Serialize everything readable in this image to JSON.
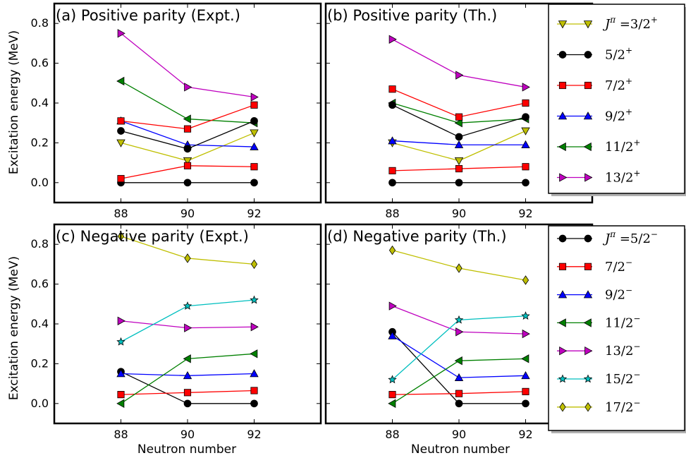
{
  "figure": {
    "ylabel": "Excitation energy (MeV)",
    "xlabel": "Neutron number"
  },
  "chart_data": [
    {
      "type": "line",
      "title": "(a) Positive parity (Expt.)",
      "xlabel": "",
      "ylabel": "Excitation energy (MeV)",
      "x": [
        88,
        90,
        92
      ],
      "xlim": [
        86,
        94
      ],
      "ylim": [
        -0.1,
        0.9
      ],
      "xticks": [
        "88",
        "90",
        "92"
      ],
      "yticks": [
        "0.0",
        "0.2",
        "0.4",
        "0.6",
        "0.8"
      ],
      "series": [
        {
          "name": "J^π = 3/2^+",
          "marker": "tri-down",
          "color": "#bfbf00",
          "values": [
            0.2,
            0.11,
            0.25
          ]
        },
        {
          "name": "5/2^+",
          "marker": "circle",
          "color": "#000000",
          "values": [
            0.0,
            0.0,
            0.0
          ]
        },
        {
          "name": "7/2^+",
          "marker": "square",
          "color": "#ff0000",
          "values": [
            0.02,
            0.085,
            0.08
          ]
        },
        {
          "name": "9/2^+",
          "marker": "tri-up",
          "color": "#0000ff",
          "values": [
            0.31,
            0.19,
            0.18
          ]
        },
        {
          "name": "11/2^+",
          "marker": "tri-left",
          "color": "#008000",
          "values": [
            0.51,
            0.32,
            0.3
          ]
        },
        {
          "name": "13/2^+",
          "marker": "tri-right",
          "color": "#bf00bf",
          "values": [
            0.75,
            0.48,
            0.43
          ]
        },
        {
          "name": "5/2^+ (band)",
          "marker": "circle",
          "color": "#000000",
          "values": [
            0.26,
            0.17,
            0.31
          ],
          "hidden_name": true
        },
        {
          "name": "7/2^+ (band)",
          "marker": "square",
          "color": "#ff0000",
          "values": [
            0.31,
            0.27,
            0.39
          ],
          "hidden_name": true
        }
      ]
    },
    {
      "type": "line",
      "title": "(b) Positive parity (Th.)",
      "xlabel": "",
      "ylabel": "",
      "x": [
        88,
        90,
        92
      ],
      "xlim": [
        86,
        94
      ],
      "ylim": [
        -0.1,
        0.9
      ],
      "xticks": [
        "88",
        "90",
        "92"
      ],
      "yticks": [],
      "series": [
        {
          "name": "J^π = 3/2^+",
          "marker": "tri-down",
          "color": "#bfbf00",
          "values": [
            0.2,
            0.11,
            0.26
          ]
        },
        {
          "name": "5/2^+",
          "marker": "circle",
          "color": "#000000",
          "values": [
            0.0,
            0.0,
            0.0
          ]
        },
        {
          "name": "7/2^+",
          "marker": "square",
          "color": "#ff0000",
          "values": [
            0.06,
            0.07,
            0.08
          ]
        },
        {
          "name": "9/2^+",
          "marker": "tri-up",
          "color": "#0000ff",
          "values": [
            0.21,
            0.19,
            0.19
          ]
        },
        {
          "name": "11/2^+",
          "marker": "tri-left",
          "color": "#008000",
          "values": [
            0.4,
            0.3,
            0.32
          ]
        },
        {
          "name": "13/2^+",
          "marker": "tri-right",
          "color": "#bf00bf",
          "values": [
            0.72,
            0.54,
            0.48
          ]
        },
        {
          "name": "5/2^+ (band)",
          "marker": "circle",
          "color": "#000000",
          "values": [
            0.39,
            0.23,
            0.33
          ],
          "hidden_name": true
        },
        {
          "name": "7/2^+ (band)",
          "marker": "square",
          "color": "#ff0000",
          "values": [
            0.47,
            0.33,
            0.4
          ],
          "hidden_name": true
        }
      ]
    },
    {
      "type": "line",
      "title": "(c) Negative parity (Expt.)",
      "xlabel": "Neutron number",
      "ylabel": "Excitation energy (MeV)",
      "x": [
        88,
        90,
        92
      ],
      "xlim": [
        86,
        94
      ],
      "ylim": [
        -0.1,
        0.9
      ],
      "xticks": [
        "88",
        "90",
        "92"
      ],
      "yticks": [
        "0.0",
        "0.2",
        "0.4",
        "0.6",
        "0.8"
      ],
      "series": [
        {
          "name": "J^π = 5/2^-",
          "marker": "circle",
          "color": "#000000",
          "values": [
            0.16,
            0.0,
            0.0
          ]
        },
        {
          "name": "7/2^-",
          "marker": "square",
          "color": "#ff0000",
          "values": [
            0.045,
            0.055,
            0.065
          ]
        },
        {
          "name": "9/2^-",
          "marker": "tri-up",
          "color": "#0000ff",
          "values": [
            0.15,
            0.14,
            0.15
          ]
        },
        {
          "name": "11/2^-",
          "marker": "tri-left",
          "color": "#008000",
          "values": [
            0.0,
            0.225,
            0.25
          ]
        },
        {
          "name": "13/2^-",
          "marker": "tri-right",
          "color": "#bf00bf",
          "values": [
            0.415,
            0.38,
            0.385
          ]
        },
        {
          "name": "15/2^-",
          "marker": "star",
          "color": "#00bfbf",
          "values": [
            0.31,
            0.49,
            0.52
          ]
        },
        {
          "name": "17/2^-",
          "marker": "diamond",
          "color": "#bfbf00",
          "values": [
            0.84,
            0.73,
            0.7
          ]
        }
      ]
    },
    {
      "type": "line",
      "title": "(d) Negative parity (Th.)",
      "xlabel": "Neutron number",
      "ylabel": "",
      "x": [
        88,
        90,
        92
      ],
      "xlim": [
        86,
        94
      ],
      "ylim": [
        -0.1,
        0.9
      ],
      "xticks": [
        "88",
        "90",
        "92"
      ],
      "yticks": [],
      "series": [
        {
          "name": "J^π = 5/2^-",
          "marker": "circle",
          "color": "#000000",
          "values": [
            0.36,
            0.0,
            0.0
          ]
        },
        {
          "name": "7/2^-",
          "marker": "square",
          "color": "#ff0000",
          "values": [
            0.045,
            0.05,
            0.06
          ]
        },
        {
          "name": "9/2^-",
          "marker": "tri-up",
          "color": "#0000ff",
          "values": [
            0.34,
            0.13,
            0.14
          ]
        },
        {
          "name": "11/2^-",
          "marker": "tri-left",
          "color": "#008000",
          "values": [
            0.0,
            0.215,
            0.225
          ]
        },
        {
          "name": "13/2^-",
          "marker": "tri-right",
          "color": "#bf00bf",
          "values": [
            0.49,
            0.36,
            0.35
          ]
        },
        {
          "name": "15/2^-",
          "marker": "star",
          "color": "#00bfbf",
          "values": [
            0.12,
            0.42,
            0.44
          ]
        },
        {
          "name": "17/2^-",
          "marker": "diamond",
          "color": "#bfbf00",
          "values": [
            0.77,
            0.68,
            0.62
          ]
        }
      ]
    }
  ],
  "legends": [
    {
      "placement": "right-of-top-row",
      "entries": [
        {
          "prefix": "J",
          "sup1": "π",
          "eq": " =",
          "frac": "3/2",
          "sup2": "+",
          "marker": "tri-down",
          "color": "#bfbf00"
        },
        {
          "prefix": "",
          "sup1": "",
          "eq": "",
          "frac": "5/2",
          "sup2": "+",
          "marker": "circle",
          "color": "#000000"
        },
        {
          "prefix": "",
          "sup1": "",
          "eq": "",
          "frac": "7/2",
          "sup2": "+",
          "marker": "square",
          "color": "#ff0000"
        },
        {
          "prefix": "",
          "sup1": "",
          "eq": "",
          "frac": "9/2",
          "sup2": "+",
          "marker": "tri-up",
          "color": "#0000ff"
        },
        {
          "prefix": "",
          "sup1": "",
          "eq": "",
          "frac": "11/2",
          "sup2": "+",
          "marker": "tri-left",
          "color": "#008000"
        },
        {
          "prefix": "",
          "sup1": "",
          "eq": "",
          "frac": "13/2",
          "sup2": "+",
          "marker": "tri-right",
          "color": "#bf00bf"
        }
      ]
    },
    {
      "placement": "right-of-bottom-row",
      "entries": [
        {
          "prefix": "J",
          "sup1": "π",
          "eq": " =",
          "frac": "5/2",
          "sup2": "−",
          "marker": "circle",
          "color": "#000000"
        },
        {
          "prefix": "",
          "sup1": "",
          "eq": "",
          "frac": "7/2",
          "sup2": "−",
          "marker": "square",
          "color": "#ff0000"
        },
        {
          "prefix": "",
          "sup1": "",
          "eq": "",
          "frac": "9/2",
          "sup2": "−",
          "marker": "tri-up",
          "color": "#0000ff"
        },
        {
          "prefix": "",
          "sup1": "",
          "eq": "",
          "frac": "11/2",
          "sup2": "−",
          "marker": "tri-left",
          "color": "#008000"
        },
        {
          "prefix": "",
          "sup1": "",
          "eq": "",
          "frac": "13/2",
          "sup2": "−",
          "marker": "tri-right",
          "color": "#bf00bf"
        },
        {
          "prefix": "",
          "sup1": "",
          "eq": "",
          "frac": "15/2",
          "sup2": "−",
          "marker": "star",
          "color": "#00bfbf"
        },
        {
          "prefix": "",
          "sup1": "",
          "eq": "",
          "frac": "17/2",
          "sup2": "−",
          "marker": "diamond",
          "color": "#bfbf00"
        }
      ]
    }
  ]
}
